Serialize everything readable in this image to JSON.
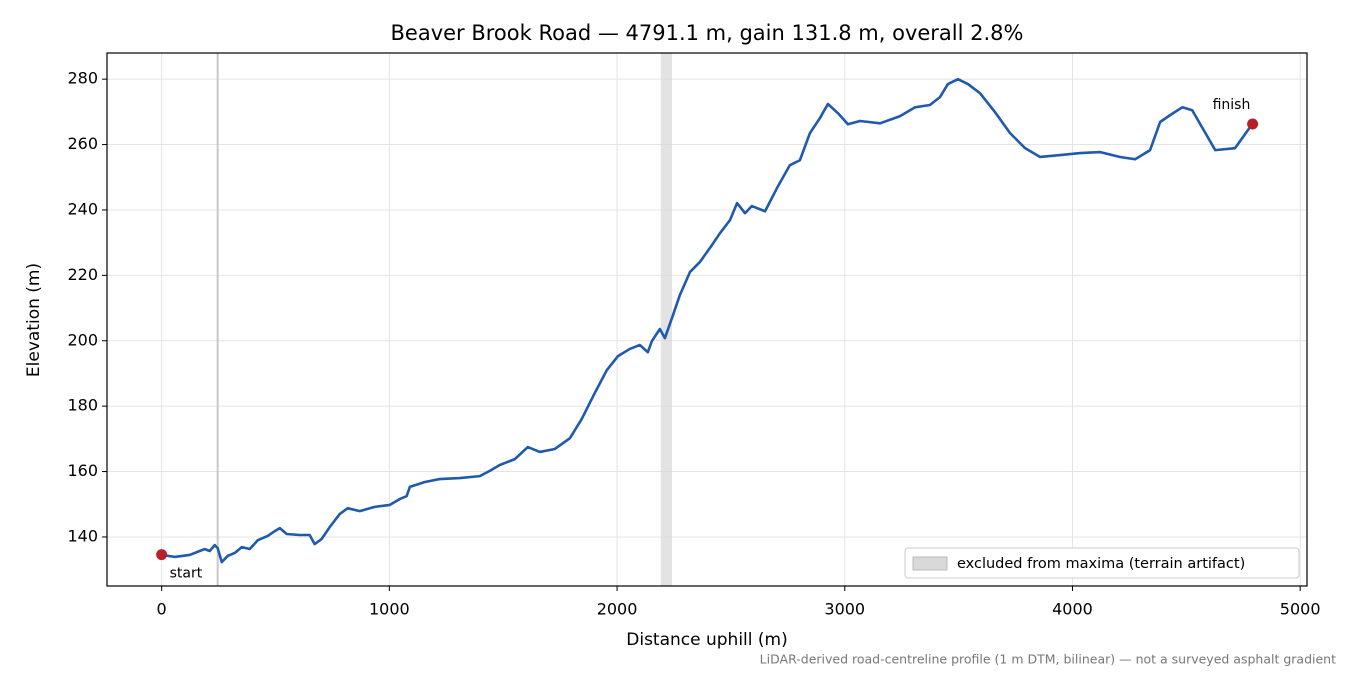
{
  "chart_data": {
    "type": "line",
    "title": "Beaver Brook Road — 4791.1 m, gain 131.8 m, overall 2.8%",
    "x_label": "Distance uphill (m)",
    "y_label": "Elevation (m)",
    "footnote": "LiDAR-derived road-centreline profile (1 m DTM, bilinear) — not a surveyed asphalt gradient",
    "xlim": [
      -240,
      5030
    ],
    "ylim": [
      125,
      288
    ],
    "xticks": [
      0,
      1000,
      2000,
      3000,
      4000,
      5000
    ],
    "yticks": [
      140,
      160,
      180,
      200,
      220,
      240,
      260,
      280
    ],
    "grid": true,
    "legend": "lower right",
    "series": [
      {
        "color": "#1f5aad",
        "x": [
          0,
          57,
          123,
          167,
          189,
          211,
          233,
          246,
          264,
          290,
          321,
          352,
          387,
          422,
          466,
          497,
          519,
          549,
          606,
          650,
          672,
          703,
          738,
          782,
          817,
          870,
          936,
          1002,
          1046,
          1076,
          1090,
          1156,
          1221,
          1309,
          1397,
          1441,
          1485,
          1551,
          1608,
          1661,
          1727,
          1793,
          1845,
          1902,
          1955,
          2004,
          2056,
          2100,
          2135,
          2153,
          2188,
          2210,
          2241,
          2276,
          2320,
          2364,
          2417,
          2452,
          2496,
          2527,
          2562,
          2592,
          2650,
          2707,
          2759,
          2803,
          2847,
          2891,
          2926,
          2970,
          3014,
          3067,
          3155,
          3243,
          3309,
          3374,
          3418,
          3453,
          3497,
          3541,
          3594,
          3660,
          3726,
          3792,
          3858,
          3946,
          4034,
          4122,
          4209,
          4275,
          4341,
          4385,
          4429,
          4482,
          4526,
          4569,
          4627,
          4714,
          4789
        ],
        "values": [
          134.5,
          133.9,
          134.5,
          135.7,
          136.3,
          135.7,
          137.5,
          136.6,
          132.3,
          134.2,
          135.1,
          136.9,
          136.3,
          139.0,
          140.3,
          141.8,
          142.7,
          140.9,
          140.6,
          140.6,
          137.8,
          139.4,
          143.0,
          147.0,
          148.8,
          147.9,
          149.2,
          149.8,
          151.6,
          152.5,
          155.3,
          156.8,
          157.7,
          158.0,
          158.6,
          160.2,
          162.0,
          163.8,
          167.5,
          166.0,
          166.9,
          170.2,
          176.1,
          184.0,
          191.0,
          195.3,
          197.5,
          198.7,
          196.5,
          199.9,
          203.6,
          200.8,
          206.9,
          214.0,
          221.0,
          224.1,
          229.3,
          232.9,
          236.9,
          242.1,
          239.0,
          241.2,
          239.6,
          247.3,
          253.7,
          255.2,
          263.5,
          268.1,
          272.4,
          269.6,
          266.2,
          267.2,
          266.5,
          268.7,
          271.4,
          272.1,
          274.5,
          278.5,
          280.0,
          278.5,
          275.7,
          269.9,
          263.5,
          258.9,
          256.2,
          256.8,
          257.4,
          257.7,
          256.2,
          255.5,
          258.3,
          266.9,
          269.0,
          271.4,
          270.5,
          265.3,
          258.3,
          258.9,
          266.2
        ]
      }
    ],
    "endpoints": {
      "color": "#b5202a",
      "x": [
        0,
        4791.1
      ],
      "values": [
        134.6,
        266.3
      ],
      "labels": [
        "start",
        "finish"
      ]
    },
    "vlines": [
      {
        "x": 246,
        "color": "#c8c8c8"
      }
    ],
    "excluded_spans": [
      {
        "name": "excluded from maxima (terrain artifact)",
        "color": "#d9d9d9",
        "x": [
          2192,
          2241
        ]
      }
    ]
  }
}
